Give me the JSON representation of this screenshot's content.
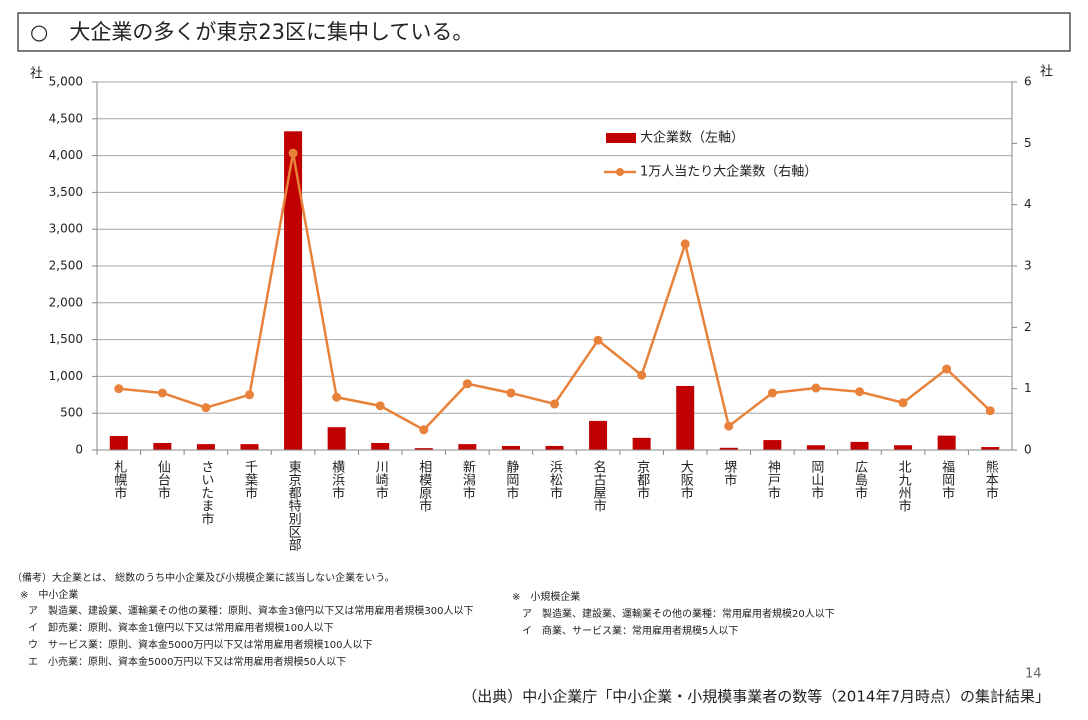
{
  "title": "○　大企業の多くが東京23区に集中している。",
  "chart_data": {
    "type": "combo",
    "y_unit": "社",
    "y2_unit": "社",
    "categories": [
      "札幌市",
      "仙台市",
      "さいたま市",
      "千葉市",
      "東京都特別区部",
      "横浜市",
      "川崎市",
      "相模原市",
      "新潟市",
      "静岡市",
      "浜松市",
      "名古屋市",
      "京都市",
      "大阪市",
      "堺市",
      "神戸市",
      "岡山市",
      "広島市",
      "北九州市",
      "福岡市",
      "熊本市"
    ],
    "series": [
      {
        "name": "大企業数（左軸）",
        "type": "bar",
        "color": "#c00000",
        "values": [
          190,
          95,
          80,
          80,
          4330,
          310,
          95,
          25,
          80,
          55,
          55,
          395,
          165,
          870,
          30,
          135,
          65,
          110,
          65,
          195,
          40
        ]
      },
      {
        "name": "1万人当たり大企業数（右軸）",
        "type": "line",
        "axis": "y2",
        "color": "#e8823a",
        "values": [
          1.0,
          0.93,
          0.69,
          0.9,
          4.84,
          0.86,
          0.72,
          0.33,
          1.08,
          0.93,
          0.75,
          1.79,
          1.22,
          3.36,
          0.39,
          0.93,
          1.01,
          0.95,
          0.77,
          1.32,
          0.64
        ]
      }
    ],
    "ylim": [
      0,
      5000
    ],
    "yticks": [
      0,
      {
        "value": 500,
        "label": "500"
      },
      {
        "value": 1000,
        "label": "1,000"
      },
      {
        "value": 1500,
        "label": "1,500"
      },
      {
        "value": 2000,
        "label": "2,000"
      },
      {
        "value": 2500,
        "label": "2,500"
      },
      {
        "value": 3000,
        "label": "3,000"
      },
      {
        "value": 3500,
        "label": "3,500"
      },
      {
        "value": 4000,
        "label": "4,000"
      },
      {
        "value": 4500,
        "label": "4,500"
      },
      {
        "value": 5000,
        "label": "5,000"
      }
    ],
    "y2lim": [
      0,
      6
    ],
    "y2ticks": [
      0,
      1,
      2,
      3,
      4,
      5,
      6
    ],
    "grid": true
  },
  "notes_left": [
    "（備考）大企業とは、 総数のうち中小企業及び小規模企業に該当しない企業をいう。",
    "※　中小企業",
    "ア　製造業、建設業、運輸業その他の業種：原則、資本金3億円以下又は常用雇用者規模300人以下",
    "イ　卸売業：原則、資本金1億円以下又は常用雇用者規模100人以下",
    "ウ　サービス業：原則、資本金5000万円以下又は常用雇用者規模100人以下",
    "エ　小売業：原則、資本金5000万円以下又は常用雇用者規模50人以下"
  ],
  "notes_right": [
    "※　小規模企業",
    "ア　製造業、建設業、運輸業その他の業種：常用雇用者規模20人以下",
    "イ　商業、サービス業：常用雇用者規模5人以下"
  ],
  "page_number": "14",
  "source": "（出典）中小企業庁「中小企業・小規模事業者の数等（2014年7月時点）の集計結果」"
}
